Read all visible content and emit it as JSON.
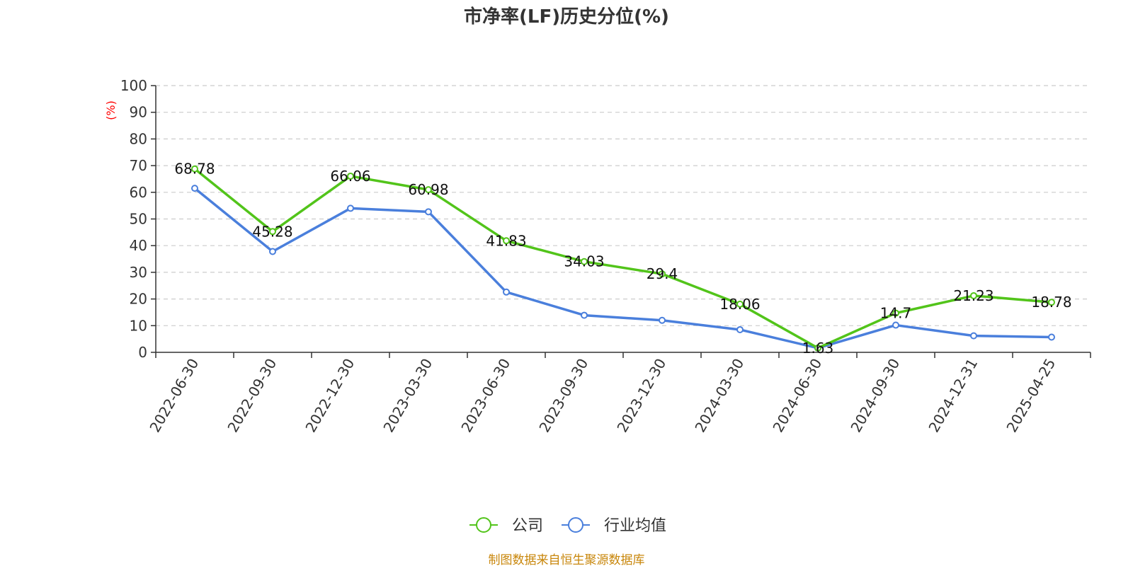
{
  "chart_data": {
    "type": "line",
    "title": "市净率(LF)历史分位(%)",
    "ylabel": "(%)",
    "xlabel": "",
    "ylim": [
      0,
      100
    ],
    "yticks": [
      0,
      10,
      20,
      30,
      40,
      50,
      60,
      70,
      80,
      90,
      100
    ],
    "grid": true,
    "legend_position": "bottom",
    "categories": [
      "2022-06-30",
      "2022-09-30",
      "2022-12-30",
      "2023-03-30",
      "2023-06-30",
      "2023-09-30",
      "2023-12-30",
      "2024-03-30",
      "2024-06-30",
      "2024-09-30",
      "2024-12-31",
      "2025-04-25"
    ],
    "series": [
      {
        "name": "公司",
        "color": "#52c41a",
        "values": [
          68.78,
          45.28,
          66.06,
          60.98,
          41.83,
          34.03,
          29.4,
          18.06,
          1.63,
          14.7,
          21.23,
          18.78
        ],
        "labels": [
          "68.78",
          "45.28",
          "66.06",
          "60.98",
          "41.83",
          "34.03",
          "29.4",
          "18.06",
          "1.63",
          "14.7",
          "21.23",
          "18.78"
        ]
      },
      {
        "name": "行业均值",
        "color": "#4a7fdc",
        "values": [
          61.5,
          37.8,
          54.0,
          52.7,
          22.6,
          13.9,
          12.0,
          8.5,
          1.6,
          10.2,
          6.2,
          5.7
        ]
      }
    ]
  },
  "source": "制图数据来自恒生聚源数据库",
  "colors": {
    "unit_label": "#ff0000",
    "source": "#c8860a"
  }
}
